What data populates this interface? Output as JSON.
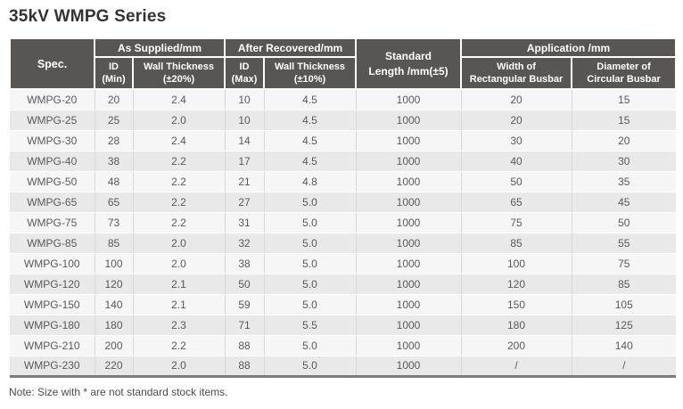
{
  "page": {
    "title": "35kV WMPG Series",
    "note": "Note: Size with * are not standard stock items."
  },
  "table": {
    "header": {
      "spec": "Spec.",
      "as_supplied": {
        "label": "As Supplied/mm",
        "id": {
          "line1": "ID",
          "line2": "(Min)"
        },
        "wall": {
          "line1": "Wall Thickness",
          "line2": "(±20%)"
        }
      },
      "after_recovered": {
        "label": "After Recovered/mm",
        "id": {
          "line1": "ID",
          "line2": "(Max)"
        },
        "wall": {
          "line1": "Wall Thickness",
          "line2": "(±10%)"
        }
      },
      "standard_length": {
        "line1": "Standard",
        "line2": "Length /mm(±5)"
      },
      "application": {
        "label": "Application /mm",
        "width": {
          "line1": "Width of",
          "line2": "Rectangular Busbar"
        },
        "diameter": {
          "line1": "Diameter of",
          "line2": "Circular Busbar"
        }
      }
    },
    "rows": [
      [
        "WMPG-20",
        "20",
        "2.4",
        "10",
        "4.5",
        "1000",
        "20",
        "15"
      ],
      [
        "WMPG-25",
        "25",
        "2.0",
        "10",
        "4.5",
        "1000",
        "20",
        "15"
      ],
      [
        "WMPG-30",
        "28",
        "2.4",
        "14",
        "4.5",
        "1000",
        "30",
        "20"
      ],
      [
        "WMPG-40",
        "38",
        "2.2",
        "17",
        "4.5",
        "1000",
        "40",
        "30"
      ],
      [
        "WMPG-50",
        "48",
        "2.2",
        "21",
        "4.8",
        "1000",
        "50",
        "35"
      ],
      [
        "WMPG-65",
        "65",
        "2.2",
        "27",
        "5.0",
        "1000",
        "65",
        "45"
      ],
      [
        "WMPG-75",
        "73",
        "2.2",
        "31",
        "5.0",
        "1000",
        "75",
        "50"
      ],
      [
        "WMPG-85",
        "85",
        "2.0",
        "32",
        "5.0",
        "1000",
        "85",
        "55"
      ],
      [
        "WMPG-100",
        "100",
        "2.0",
        "38",
        "5.0",
        "1000",
        "100",
        "75"
      ],
      [
        "WMPG-120",
        "120",
        "2.1",
        "50",
        "5.0",
        "1000",
        "120",
        "85"
      ],
      [
        "WMPG-150",
        "140",
        "2.1",
        "59",
        "5.0",
        "1000",
        "150",
        "105"
      ],
      [
        "WMPG-180",
        "180",
        "2.3",
        "71",
        "5.5",
        "1000",
        "180",
        "125"
      ],
      [
        "WMPG-210",
        "200",
        "2.2",
        "88",
        "5.0",
        "1000",
        "200",
        "140"
      ],
      [
        "WMPG-230",
        "220",
        "2.0",
        "88",
        "5.0",
        "1000",
        "/",
        "/"
      ]
    ]
  },
  "colors": {
    "header_bg": "#585553",
    "row_odd": "#f6f6f6",
    "row_even": "#e9e9e9",
    "title_text": "#333333",
    "data_text": "#595959",
    "table_bottom_border": "#7b7b7b"
  }
}
